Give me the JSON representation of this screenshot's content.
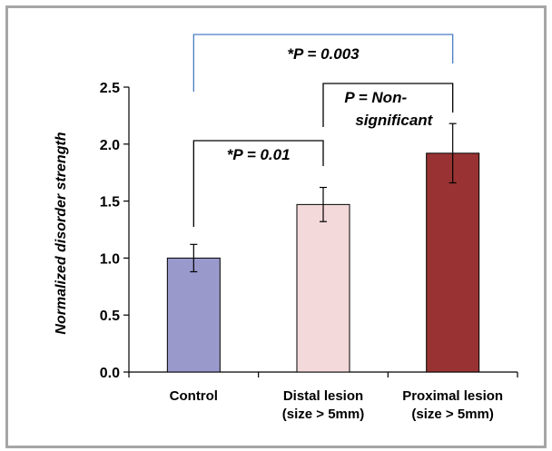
{
  "chart_data": {
    "type": "bar",
    "title": "",
    "xlabel": "",
    "ylabel": "Normalized disorder strength",
    "ylim": [
      0,
      2.5
    ],
    "yticks": [
      "0.0",
      "0.5",
      "1.0",
      "1.5",
      "2.0",
      "2.5"
    ],
    "grid": false,
    "categories": [
      [
        "Control"
      ],
      [
        "Distal lesion",
        "(size > 5mm)"
      ],
      [
        "Proximal lesion",
        "(size > 5mm)"
      ]
    ],
    "values": [
      1.0,
      1.47,
      1.92
    ],
    "errors": [
      0.12,
      0.15,
      0.26
    ],
    "colors": [
      "#9999cc",
      "#f4d9da",
      "#993333"
    ],
    "annotations": [
      {
        "text": [
          "*P = 0.01"
        ],
        "from": 0,
        "to": 1,
        "color": "#000000"
      },
      {
        "text": [
          "P = Non-",
          "significant"
        ],
        "from": 1,
        "to": 2,
        "color": "#000000"
      },
      {
        "text": [
          "*P = 0.003"
        ],
        "from": 0,
        "to": 2,
        "color": "#4a7fc0"
      }
    ]
  }
}
